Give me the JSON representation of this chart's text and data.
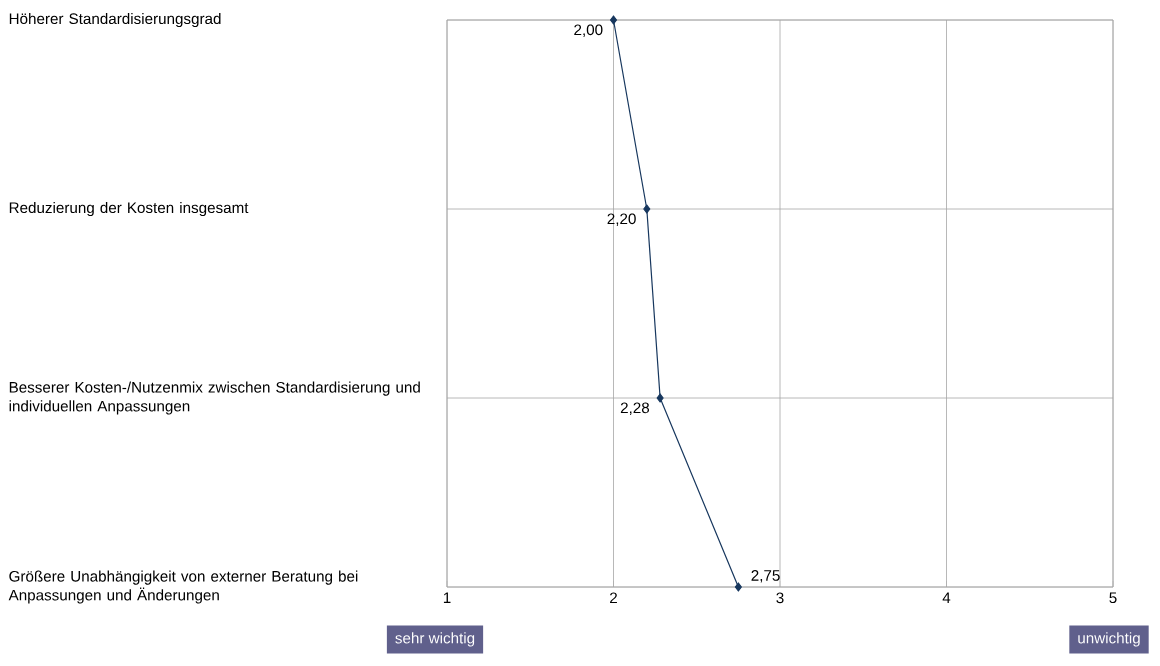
{
  "chart_data": {
    "type": "line",
    "orientation": "horizontal",
    "categories": [
      "Höherer Standardisierungsgrad",
      "Reduzierung der Kosten insgesamt",
      "Besserer Kosten-/Nutzenmix zwischen Standardisierung und individuellen Anpassungen",
      "Größere Unabhängigkeit von externer Beratung bei Anpassungen und Änderungen"
    ],
    "values": [
      2.0,
      2.2,
      2.28,
      2.75
    ],
    "value_labels": [
      "2,00",
      "2,20",
      "2,28",
      "2,75"
    ],
    "color": "#17375e",
    "marker": "diamond",
    "xlim": [
      1,
      5
    ],
    "xticks": [
      1,
      2,
      3,
      4,
      5
    ],
    "grid": true,
    "annotations": [
      "sehr wichtig",
      "unwichtig"
    ]
  }
}
